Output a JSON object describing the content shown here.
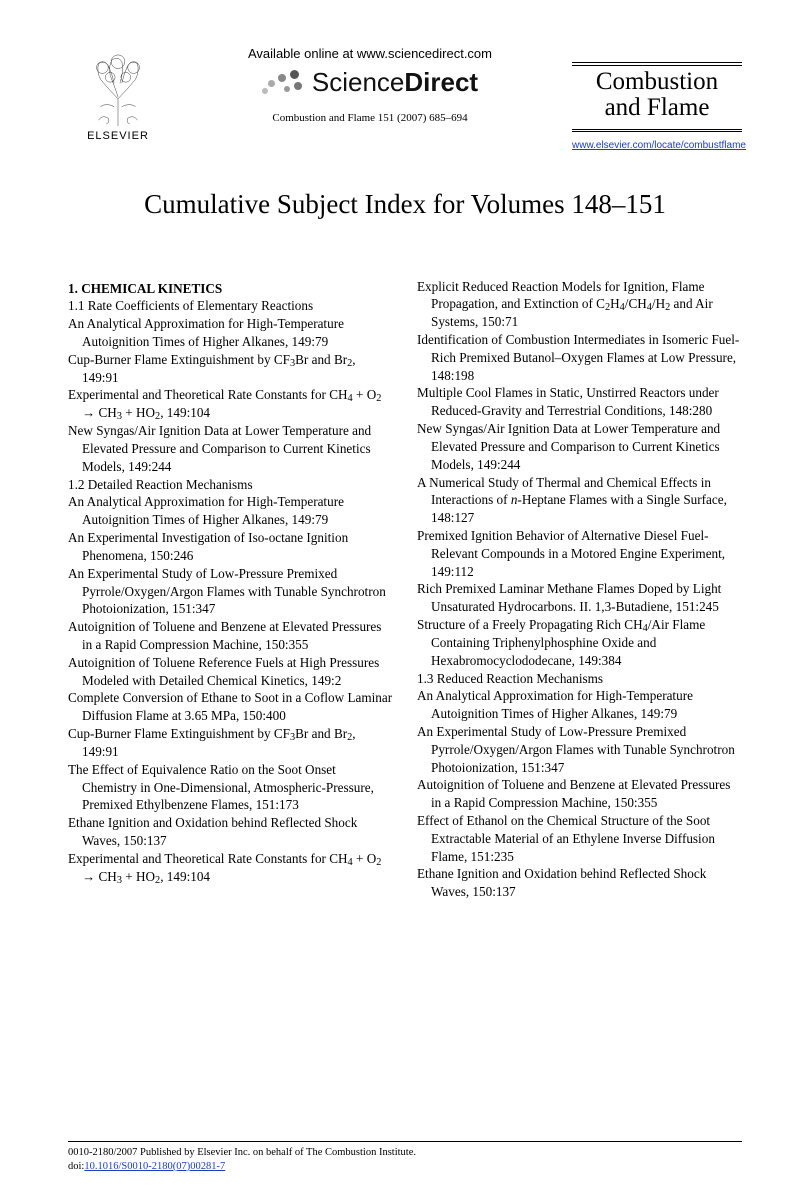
{
  "header": {
    "publisher_label": "ELSEVIER",
    "available_online": "Available online at www.sciencedirect.com",
    "sd_brand_light": "Science",
    "sd_brand_bold": "Direct",
    "citation": "Combustion and Flame 151 (2007) 685–694",
    "journal_line1": "Combustion",
    "journal_line2": "and Flame",
    "journal_url": "www.elsevier.com/locate/combustflame"
  },
  "title": "Cumulative Subject Index for Volumes 148–151",
  "left_col": [
    {
      "type": "section",
      "text": "1. CHEMICAL KINETICS"
    },
    {
      "type": "sub",
      "text": "1.1 Rate Coefficients of Elementary Reactions"
    },
    {
      "type": "entry",
      "html": "An Analytical Approximation for High-Temperature Autoignition Times of Higher Alkanes, 149:79"
    },
    {
      "type": "entry",
      "html": "Cup-Burner Flame Extinguishment by CF<span class='chemsub'>3</span>Br and Br<span class='chemsub'>2</span>, 149:91"
    },
    {
      "type": "entry",
      "html": "Experimental and Theoretical Rate Constants for CH<span class='chemsub'>4</span> + O<span class='chemsub'>2</span> → CH<span class='chemsub'>3</span> + HO<span class='chemsub'>2</span>, 149:104"
    },
    {
      "type": "entry",
      "html": "New Syngas/Air Ignition Data at Lower Temperature and Elevated Pressure and Comparison to Current Kinetics Models, 149:244"
    },
    {
      "type": "sub",
      "text": "1.2 Detailed Reaction Mechanisms"
    },
    {
      "type": "entry",
      "html": "An Analytical Approximation for High-Temperature Autoignition Times of Higher Alkanes, 149:79"
    },
    {
      "type": "entry",
      "html": "An Experimental Investigation of Iso-octane Ignition Phenomena, 150:246"
    },
    {
      "type": "entry",
      "html": "An Experimental Study of Low-Pressure Premixed Pyrrole/Oxygen/Argon Flames with Tunable Synchrotron Photoionization, 151:347"
    },
    {
      "type": "entry",
      "html": "Autoignition of Toluene and Benzene at Elevated Pressures in a Rapid Compression Machine, 150:355"
    },
    {
      "type": "entry",
      "html": "Autoignition of Toluene Reference Fuels at High Pressures Modeled with Detailed Chemical Kinetics, 149:2"
    },
    {
      "type": "entry",
      "html": "Complete Conversion of Ethane to Soot in a Coflow Laminar Diffusion Flame at 3.65 MPa, 150:400"
    },
    {
      "type": "entry",
      "html": "Cup-Burner Flame Extinguishment by CF<span class='chemsub'>3</span>Br and Br<span class='chemsub'>2</span>, 149:91"
    },
    {
      "type": "entry",
      "html": "The Effect of Equivalence Ratio on the Soot Onset Chemistry in One-Dimensional, Atmospheric-Pressure, Premixed Ethylbenzene Flames, 151:173"
    },
    {
      "type": "entry",
      "html": "Ethane Ignition and Oxidation behind Reflected Shock Waves, 150:137"
    },
    {
      "type": "entry",
      "html": "Experimental and Theoretical Rate Constants for CH<span class='chemsub'>4</span> + O<span class='chemsub'>2</span> → CH<span class='chemsub'>3</span> + HO<span class='chemsub'>2</span>, 149:104"
    }
  ],
  "right_col": [
    {
      "type": "entry",
      "html": "Explicit Reduced Reaction Models for Ignition, Flame Propagation, and Extinction of C<span class='chemsub'>2</span>H<span class='chemsub'>4</span>/CH<span class='chemsub'>4</span>/H<span class='chemsub'>2</span> and Air Systems, 150:71"
    },
    {
      "type": "entry",
      "html": "Identification of Combustion Intermediates in Isomeric Fuel-Rich Premixed Butanol–Oxygen Flames at Low Pressure, 148:198"
    },
    {
      "type": "entry",
      "html": "Multiple Cool Flames in Static, Unstirred Reactors under Reduced-Gravity and Terrestrial Conditions, 148:280"
    },
    {
      "type": "entry",
      "html": "New Syngas/Air Ignition Data at Lower Temperature and Elevated Pressure and Comparison to Current Kinetics Models, 149:244"
    },
    {
      "type": "entry",
      "html": "A Numerical Study of Thermal and Chemical Effects in Interactions of <i>n</i>-Heptane Flames with a Single Surface, 148:127"
    },
    {
      "type": "entry",
      "html": "Premixed Ignition Behavior of Alternative Diesel Fuel-Relevant Compounds in a Motored Engine Experiment, 149:112"
    },
    {
      "type": "entry",
      "html": "Rich Premixed Laminar Methane Flames Doped by Light Unsaturated Hydrocarbons. II. 1,3-Butadiene, 151:245"
    },
    {
      "type": "entry",
      "html": "Structure of a Freely Propagating Rich CH<span class='chemsub'>4</span>/Air Flame Containing Triphenylphosphine Oxide and Hexabromocyclododecane, 149:384"
    },
    {
      "type": "sub",
      "text": "1.3 Reduced Reaction Mechanisms"
    },
    {
      "type": "entry",
      "html": "An Analytical Approximation for High-Temperature Autoignition Times of Higher Alkanes, 149:79"
    },
    {
      "type": "entry",
      "html": "An Experimental Study of Low-Pressure Premixed Pyrrole/Oxygen/Argon Flames with Tunable Synchrotron Photoionization, 151:347"
    },
    {
      "type": "entry",
      "html": "Autoignition of Toluene and Benzene at Elevated Pressures in a Rapid Compression Machine, 150:355"
    },
    {
      "type": "entry",
      "html": "Effect of Ethanol on the Chemical Structure of the Soot Extractable Material of an Ethylene Inverse Diffusion Flame, 151:235"
    },
    {
      "type": "entry",
      "html": "Ethane Ignition and Oxidation behind Reflected Shock Waves, 150:137"
    }
  ],
  "footer": {
    "copyright": "0010-2180/2007 Published by Elsevier Inc. on behalf of The Combustion Institute.",
    "doi_prefix": "doi:",
    "doi": "10.1016/S0010-2180(07)00281-7"
  },
  "colors": {
    "text": "#000000",
    "link": "#1a3fbf",
    "sd_dot": "#777777",
    "background": "#ffffff"
  }
}
